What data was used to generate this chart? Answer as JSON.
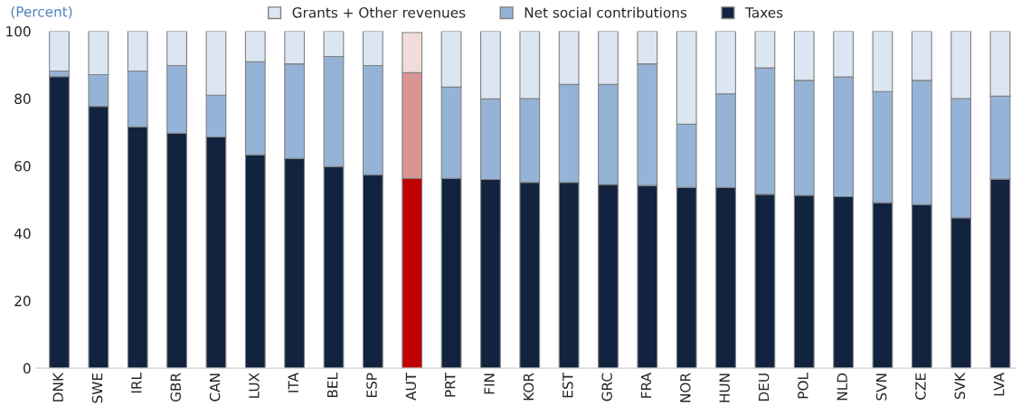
{
  "chart_data": {
    "type": "bar",
    "stacked": true,
    "subtitle": "(Percent)",
    "categories": [
      "DNK",
      "SWE",
      "IRL",
      "GBR",
      "CAN",
      "LUX",
      "ITA",
      "BEL",
      "ESP",
      "AUT",
      "PRT",
      "FIN",
      "KOR",
      "EST",
      "GRC",
      "FRA",
      "NOR",
      "HUN",
      "DEU",
      "POL",
      "NLD",
      "SVN",
      "CZE",
      "SVK",
      "LVA"
    ],
    "series": [
      {
        "name": "Taxes",
        "color": "#12233f",
        "colors": [
          "#12233f",
          "#12233f",
          "#12233f",
          "#12233f",
          "#12233f",
          "#12233f",
          "#12233f",
          "#12233f",
          "#12233f",
          "#c00000",
          "#12233f",
          "#12233f",
          "#12233f",
          "#12233f",
          "#12233f",
          "#12233f",
          "#12233f",
          "#12233f",
          "#12233f",
          "#12233f",
          "#12233f",
          "#12233f",
          "#12233f",
          "#12233f",
          "#12233f"
        ],
        "values": [
          86.5,
          77.7,
          71.6,
          69.7,
          68.6,
          63.3,
          62.2,
          59.8,
          57.4,
          56.3,
          56.3,
          56.0,
          55.1,
          55.1,
          54.5,
          54.2,
          53.6,
          53.6,
          51.6,
          51.3,
          50.9,
          49.1,
          48.5,
          44.6,
          56.1
        ]
      },
      {
        "name": "Net social contributions",
        "color": "#95b3d7",
        "colors": [
          "#95b3d7",
          "#95b3d7",
          "#95b3d7",
          "#95b3d7",
          "#95b3d7",
          "#95b3d7",
          "#95b3d7",
          "#95b3d7",
          "#95b3d7",
          "#d99594",
          "#95b3d7",
          "#95b3d7",
          "#95b3d7",
          "#95b3d7",
          "#95b3d7",
          "#95b3d7",
          "#95b3d7",
          "#95b3d7",
          "#95b3d7",
          "#95b3d7",
          "#95b3d7",
          "#95b3d7",
          "#95b3d7",
          "#95b3d7",
          "#95b3d7"
        ],
        "values": [
          1.7,
          9.4,
          16.6,
          20.1,
          12.4,
          27.6,
          28.1,
          32.7,
          32.4,
          31.4,
          27.1,
          23.9,
          24.9,
          29.1,
          29.7,
          36.1,
          18.8,
          27.8,
          37.5,
          34.1,
          35.5,
          33.0,
          36.9,
          35.4,
          24.6
        ]
      },
      {
        "name": "Grants + Other revenues",
        "color": "#dce6f2",
        "colors": [
          "#dce6f2",
          "#dce6f2",
          "#dce6f2",
          "#dce6f2",
          "#dce6f2",
          "#dce6f2",
          "#dce6f2",
          "#dce6f2",
          "#dce6f2",
          "#f2dcdb",
          "#dce6f2",
          "#dce6f2",
          "#dce6f2",
          "#dce6f2",
          "#dce6f2",
          "#dce6f2",
          "#dce6f2",
          "#dce6f2",
          "#dce6f2",
          "#dce6f2",
          "#dce6f2",
          "#dce6f2",
          "#dce6f2",
          "#dce6f2",
          "#dce6f2"
        ],
        "values": [
          11.8,
          12.9,
          11.8,
          10.2,
          19.0,
          9.1,
          9.7,
          7.5,
          10.2,
          11.9,
          16.6,
          20.1,
          20.0,
          15.8,
          15.8,
          9.7,
          27.6,
          18.6,
          10.9,
          14.6,
          13.6,
          17.9,
          14.6,
          20.0,
          19.3
        ]
      }
    ],
    "ylim": [
      0,
      100
    ],
    "yticks": [
      0,
      20,
      40,
      60,
      80,
      100
    ],
    "legend": "top"
  }
}
